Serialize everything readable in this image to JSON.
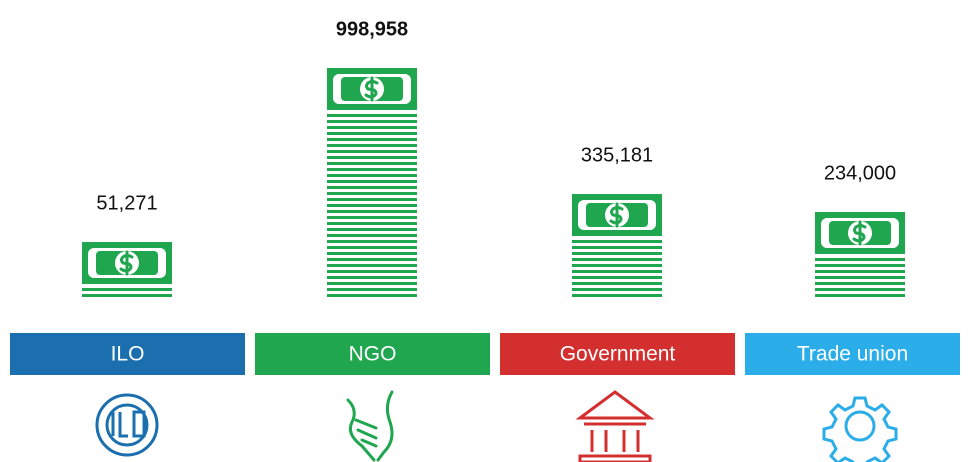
{
  "chart_data": {
    "type": "pictogram",
    "categories": [
      "ILO",
      "NGO",
      "Government",
      "Trade union"
    ],
    "values": [
      51271,
      998958,
      335181,
      234000
    ],
    "value_labels": [
      "51,271",
      "998,958",
      "335,181",
      "234,000"
    ],
    "color": "#1fa64f",
    "category_colors": [
      "#1b6fae",
      "#1fa64f",
      "#d42f2f",
      "#2badea"
    ]
  }
}
